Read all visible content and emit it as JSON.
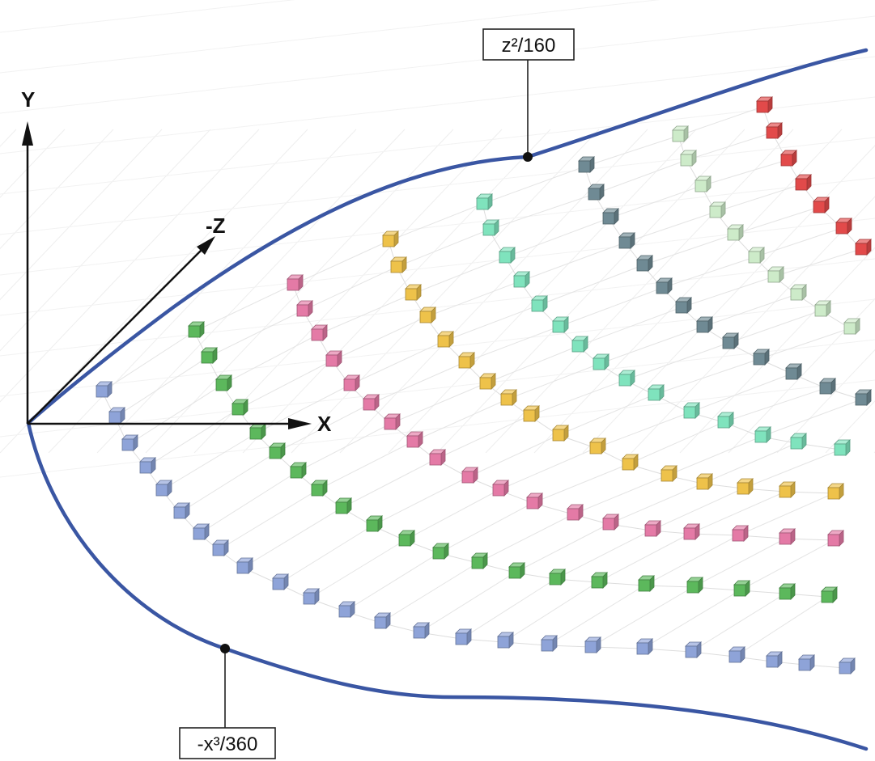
{
  "axes": {
    "y_label": "Y",
    "x_label": "X",
    "z_label": "-Z"
  },
  "curves": {
    "upper_label": "z²/160",
    "lower_label": "-x³/360",
    "color": "#3a56a3"
  },
  "series": [
    {
      "id": "blue",
      "color": "#8ea3d8"
    },
    {
      "id": "green",
      "color": "#5cb85c"
    },
    {
      "id": "pink",
      "color": "#e47aa6"
    },
    {
      "id": "yellow",
      "color": "#eec24a"
    },
    {
      "id": "aqua",
      "color": "#7fe3bd"
    },
    {
      "id": "slate",
      "color": "#6f8a94"
    },
    {
      "id": "pale-green",
      "color": "#cdebc9"
    },
    {
      "id": "red",
      "color": "#e24a4a"
    }
  ]
}
